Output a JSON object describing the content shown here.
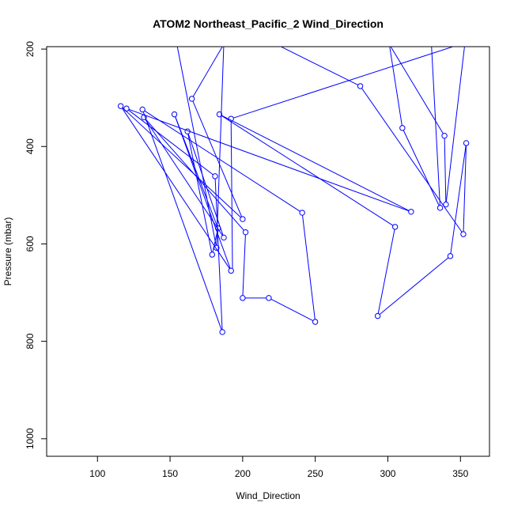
{
  "chart_data": {
    "type": "line",
    "title": "ATOM2 Northeast_Pacific_2 Wind_Direction",
    "xlabel": "Wind_Direction",
    "ylabel": "Pressure (mbar)",
    "xlim": [
      65,
      370
    ],
    "ylim": [
      1036,
      195
    ],
    "y_reversed": true,
    "x_ticks": [
      100,
      150,
      200,
      250,
      300,
      350
    ],
    "y_ticks": [
      200,
      400,
      600,
      800,
      1000
    ],
    "grid": false,
    "legend": "none",
    "series": [
      {
        "color": "#0000ff",
        "marker": "open-circle",
        "points": [
          [
            155,
            195,
            false
          ],
          [
            182,
            608,
            true
          ],
          [
            187,
            190,
            false
          ],
          [
            165,
            302,
            true
          ],
          [
            200,
            549,
            true
          ],
          [
            116,
            317,
            true
          ],
          [
            192,
            655,
            true
          ],
          [
            153,
            334,
            true
          ],
          [
            183,
            568,
            true
          ],
          [
            179,
            622,
            true
          ],
          [
            162,
            369,
            true
          ],
          [
            187,
            587,
            true
          ],
          [
            132,
            340,
            true
          ],
          [
            202,
            576,
            true
          ],
          [
            200,
            711,
            true
          ],
          [
            218,
            711,
            true
          ],
          [
            250,
            760,
            true
          ],
          [
            241,
            536,
            true
          ],
          [
            131,
            324,
            true
          ],
          [
            186,
            781,
            true
          ],
          [
            181,
            461,
            true
          ],
          [
            120,
            322,
            true
          ],
          [
            316,
            534,
            true
          ],
          [
            184,
            334,
            true
          ],
          [
            305,
            565,
            true
          ],
          [
            293,
            748,
            true
          ],
          [
            343,
            625,
            true
          ],
          [
            354,
            393,
            true
          ],
          [
            352,
            580,
            true
          ],
          [
            281,
            276,
            true
          ],
          [
            223,
            190,
            false
          ],
          [
            330,
            190,
            false
          ],
          [
            336,
            526,
            true
          ],
          [
            310,
            362,
            true
          ],
          [
            301,
            190,
            false
          ],
          [
            339,
            378,
            true
          ],
          [
            340,
            519,
            true
          ],
          [
            353,
            190,
            false
          ],
          [
            350,
            190,
            false
          ],
          [
            192,
            343,
            true
          ],
          [
            193,
            650,
            false
          ]
        ]
      }
    ]
  }
}
